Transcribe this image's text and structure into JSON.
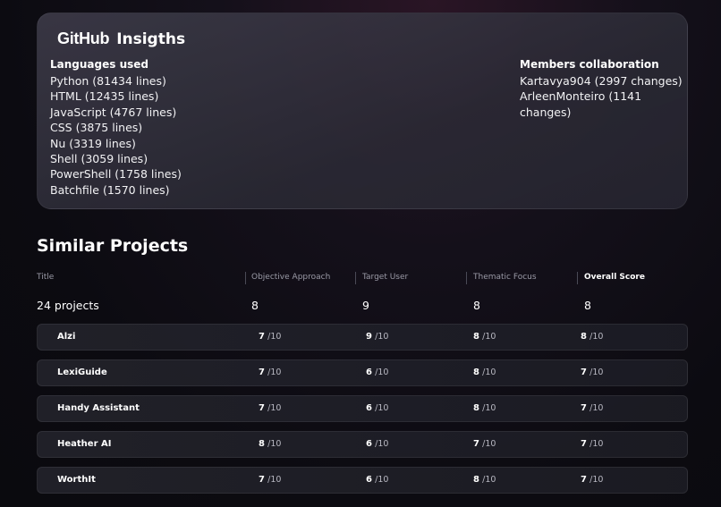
{
  "insights": {
    "logo_text": "GitHub",
    "title": "Insigths",
    "languages_heading": "Languages used",
    "languages": [
      "Python (81434 lines)",
      "HTML (12435 lines)",
      "JavaScript (4767 lines)",
      "CSS (3875 lines)",
      "Nu (3319 lines)",
      "Shell (3059 lines)",
      "PowerShell (1758 lines)",
      "Batchfile (1570 lines)"
    ],
    "members_heading": "Members collaboration",
    "members": [
      "Kartavya904 (2997 changes)",
      "ArleenMonteiro (1141 changes)"
    ]
  },
  "similar_projects": {
    "title": "Similar Projects",
    "columns": [
      "Title",
      "Objective Approach",
      "Target User",
      "Thematic Focus",
      "Overall Score"
    ],
    "summary": {
      "count": "24 projects",
      "objective": "8",
      "target": "9",
      "thematic": "8",
      "overall": "8"
    },
    "score_suffix": "/10",
    "rows": [
      {
        "name": "Alzi",
        "objective": "7",
        "target": "9",
        "thematic": "8",
        "overall": "8"
      },
      {
        "name": "LexiGuide",
        "objective": "7",
        "target": "6",
        "thematic": "8",
        "overall": "7"
      },
      {
        "name": "Handy Assistant",
        "objective": "7",
        "target": "6",
        "thematic": "8",
        "overall": "7"
      },
      {
        "name": "Heather AI",
        "objective": "8",
        "target": "6",
        "thematic": "7",
        "overall": "7"
      },
      {
        "name": "WorthIt",
        "objective": "7",
        "target": "6",
        "thematic": "8",
        "overall": "7"
      }
    ]
  }
}
